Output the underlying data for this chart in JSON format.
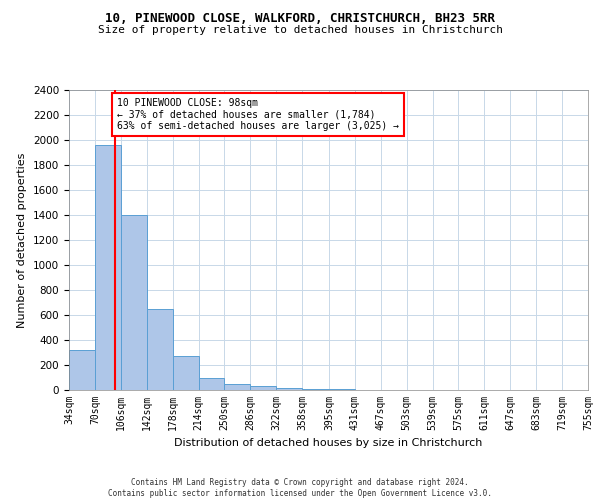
{
  "title": "10, PINEWOOD CLOSE, WALKFORD, CHRISTCHURCH, BH23 5RR",
  "subtitle": "Size of property relative to detached houses in Christchurch",
  "xlabel": "Distribution of detached houses by size in Christchurch",
  "ylabel": "Number of detached properties",
  "bin_edges": [
    34,
    70,
    106,
    142,
    178,
    214,
    250,
    286,
    322,
    358,
    395,
    431,
    467,
    503,
    539,
    575,
    611,
    647,
    683,
    719,
    755
  ],
  "bin_heights": [
    320,
    1960,
    1400,
    650,
    270,
    100,
    50,
    35,
    20,
    10,
    5,
    3,
    2,
    2,
    2,
    1,
    1,
    1,
    1,
    1
  ],
  "bar_color": "#aec6e8",
  "bar_edgecolor": "#5a9fd4",
  "property_size": 98,
  "vline_color": "red",
  "annotation_text": "10 PINEWOOD CLOSE: 98sqm\n← 37% of detached houses are smaller (1,784)\n63% of semi-detached houses are larger (3,025) →",
  "annotation_boxcolor": "white",
  "annotation_edgecolor": "red",
  "ylim": [
    0,
    2400
  ],
  "yticks": [
    0,
    200,
    400,
    600,
    800,
    1000,
    1200,
    1400,
    1600,
    1800,
    2000,
    2200,
    2400
  ],
  "footer_line1": "Contains HM Land Registry data © Crown copyright and database right 2024.",
  "footer_line2": "Contains public sector information licensed under the Open Government Licence v3.0.",
  "bg_color": "#ffffff",
  "grid_color": "#c8d8e8"
}
